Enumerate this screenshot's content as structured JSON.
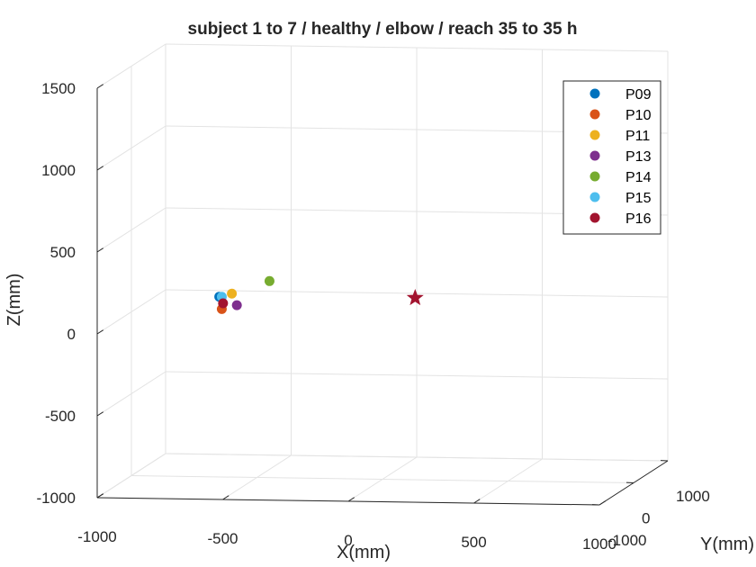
{
  "chart_data": {
    "type": "scatter",
    "view": "3d",
    "title": "subject 1 to 7 / healthy / elbow / reach 35 to 35 h",
    "xlabel": "X(mm)",
    "ylabel": "Y(mm)",
    "zlabel": "Z(mm)",
    "xlim": [
      -1000,
      1000
    ],
    "ylim": [
      -1000,
      1000
    ],
    "zlim": [
      -1000,
      1500
    ],
    "x_ticks": [
      "-1000",
      "-500",
      "0",
      "500",
      "1000"
    ],
    "y_ticks": [
      "-1000",
      "0",
      "1000"
    ],
    "z_ticks": [
      "-1000",
      "-500",
      "0",
      "500",
      "1000",
      "1500"
    ],
    "grid": true,
    "legend_position": "top-right",
    "series": [
      {
        "name": "P09",
        "color": "#0072BD",
        "marker": "circle",
        "points": [
          {
            "x": -650,
            "y": 0,
            "z": 100
          }
        ]
      },
      {
        "name": "P10",
        "color": "#D95319",
        "marker": "circle",
        "points": [
          {
            "x": -640,
            "y": 0,
            "z": 25
          }
        ]
      },
      {
        "name": "P11",
        "color": "#EDB120",
        "marker": "circle",
        "points": [
          {
            "x": -600,
            "y": 0,
            "z": 120
          }
        ]
      },
      {
        "name": "P13",
        "color": "#7E2F8E",
        "marker": "circle",
        "points": [
          {
            "x": -580,
            "y": 0,
            "z": 50
          }
        ]
      },
      {
        "name": "P14",
        "color": "#77AC30",
        "marker": "circle",
        "points": [
          {
            "x": -450,
            "y": 0,
            "z": 200
          }
        ]
      },
      {
        "name": "P15",
        "color": "#4DBEEE",
        "marker": "circle",
        "points": [
          {
            "x": -640,
            "y": 0,
            "z": 100
          }
        ]
      },
      {
        "name": "P16",
        "color": "#A2142F",
        "marker": "circle",
        "points": [
          {
            "x": -635,
            "y": 0,
            "z": 60
          }
        ]
      }
    ],
    "target": {
      "marker": "star",
      "color": "#A2142F",
      "x": 130,
      "y": 0,
      "z": 110
    }
  }
}
